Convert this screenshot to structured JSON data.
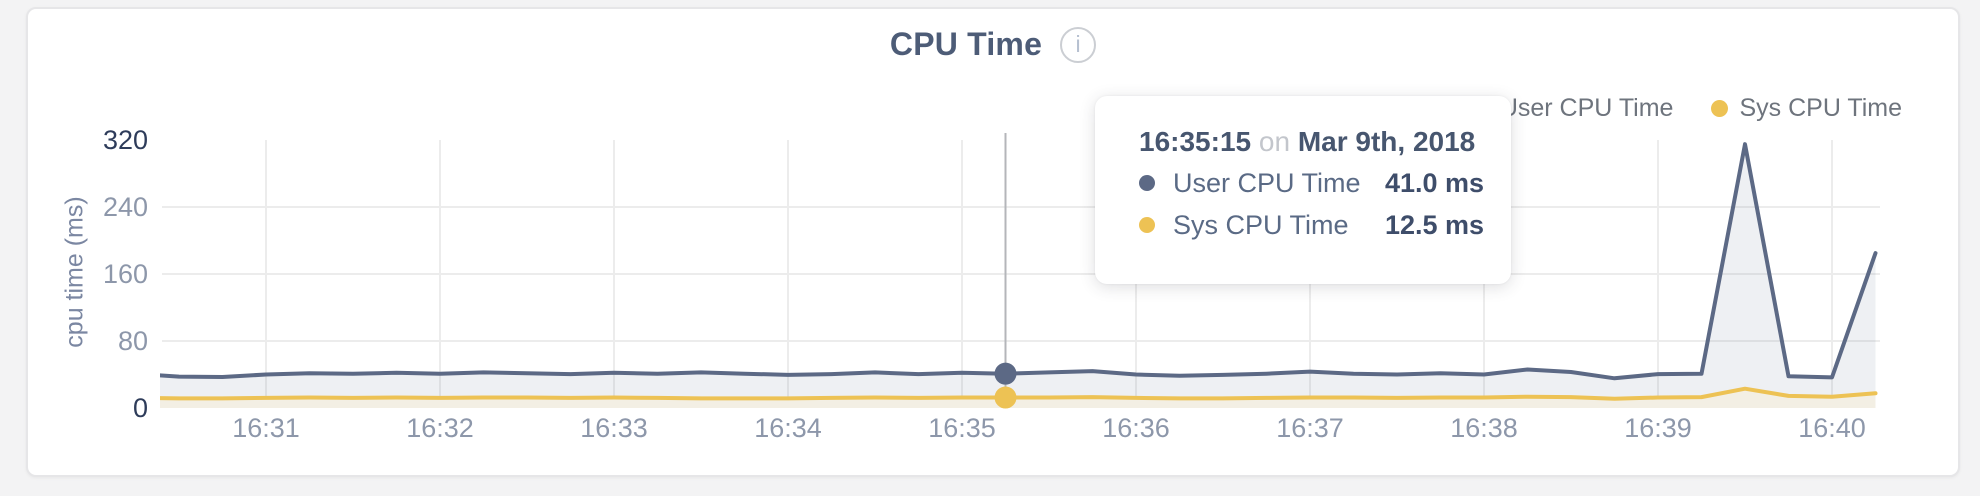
{
  "header": {
    "title": "CPU Time",
    "info_icon_glyph": "i"
  },
  "legend": {
    "items": [
      {
        "label": "User CPU Time",
        "color": "#5c6985"
      },
      {
        "label": "Sys CPU Time",
        "color": "#edc254"
      }
    ]
  },
  "tooltip": {
    "time": "16:35:15",
    "preposition": "on",
    "date": "Mar 9th, 2018",
    "rows": [
      {
        "label": "User CPU Time",
        "value": "41.0 ms",
        "color": "#5c6985"
      },
      {
        "label": "Sys CPU Time",
        "value": "12.5 ms",
        "color": "#edc254"
      }
    ]
  },
  "chart_data": {
    "type": "area",
    "title": "CPU Time",
    "ylabel": "cpu time (ms)",
    "ylim": [
      0,
      320
    ],
    "grid": "on",
    "legend_position": "top-right",
    "x_unit": "seconds after 16:30:00 on Mar 9th, 2018",
    "y_ticks": [
      {
        "v": 0,
        "label": "0",
        "emphasized": true
      },
      {
        "v": 80,
        "label": "80",
        "emphasized": false
      },
      {
        "v": 160,
        "label": "160",
        "emphasized": false
      },
      {
        "v": 240,
        "label": "240",
        "emphasized": false
      },
      {
        "v": 320,
        "label": "320",
        "emphasized": true
      }
    ],
    "x_ticks": [
      {
        "t": 60,
        "label": "16:31"
      },
      {
        "t": 120,
        "label": "16:32"
      },
      {
        "t": 180,
        "label": "16:33"
      },
      {
        "t": 240,
        "label": "16:34"
      },
      {
        "t": 300,
        "label": "16:35"
      },
      {
        "t": 360,
        "label": "16:36"
      },
      {
        "t": 420,
        "label": "16:37"
      },
      {
        "t": 480,
        "label": "16:38"
      },
      {
        "t": 540,
        "label": "16:39"
      },
      {
        "t": 600,
        "label": "16:40"
      }
    ],
    "series": [
      {
        "name": "User CPU Time",
        "color": "#5c6985",
        "fill": "rgba(92,105,134,0.10)",
        "points": [
          [
            15,
            41
          ],
          [
            30,
            37.5
          ],
          [
            45,
            37
          ],
          [
            60,
            40
          ],
          [
            75,
            41.5
          ],
          [
            90,
            41
          ],
          [
            105,
            42
          ],
          [
            120,
            41
          ],
          [
            135,
            42.5
          ],
          [
            150,
            41.5
          ],
          [
            165,
            40.5
          ],
          [
            180,
            42
          ],
          [
            195,
            41
          ],
          [
            210,
            42.5
          ],
          [
            225,
            41
          ],
          [
            240,
            39.5
          ],
          [
            255,
            40.5
          ],
          [
            270,
            42.5
          ],
          [
            285,
            40.5
          ],
          [
            300,
            42
          ],
          [
            315,
            41
          ],
          [
            330,
            42.5
          ],
          [
            345,
            44
          ],
          [
            360,
            40
          ],
          [
            375,
            38.5
          ],
          [
            390,
            39.5
          ],
          [
            405,
            41
          ],
          [
            420,
            43.5
          ],
          [
            435,
            41
          ],
          [
            450,
            40
          ],
          [
            465,
            41.5
          ],
          [
            480,
            40
          ],
          [
            495,
            46
          ],
          [
            510,
            43
          ],
          [
            525,
            35.5
          ],
          [
            540,
            40.5
          ],
          [
            555,
            41
          ],
          [
            570,
            315
          ],
          [
            585,
            38
          ],
          [
            600,
            36.5
          ],
          [
            615,
            185
          ]
        ]
      },
      {
        "name": "Sys CPU Time",
        "color": "#edc254",
        "fill": "#f3efe4",
        "points": [
          [
            15,
            12
          ],
          [
            30,
            11.5
          ],
          [
            45,
            11.5
          ],
          [
            60,
            12
          ],
          [
            75,
            12.5
          ],
          [
            90,
            12
          ],
          [
            105,
            12.5
          ],
          [
            120,
            12
          ],
          [
            135,
            12.5
          ],
          [
            150,
            12.5
          ],
          [
            165,
            12
          ],
          [
            180,
            12.5
          ],
          [
            195,
            12
          ],
          [
            210,
            11.5
          ],
          [
            225,
            11.5
          ],
          [
            240,
            11.5
          ],
          [
            255,
            12
          ],
          [
            270,
            12.5
          ],
          [
            285,
            12
          ],
          [
            300,
            12.5
          ],
          [
            315,
            12.5
          ],
          [
            330,
            12.5
          ],
          [
            345,
            13
          ],
          [
            360,
            12
          ],
          [
            375,
            11.5
          ],
          [
            390,
            11.5
          ],
          [
            405,
            12
          ],
          [
            420,
            12.5
          ],
          [
            435,
            12.5
          ],
          [
            450,
            12
          ],
          [
            465,
            12.5
          ],
          [
            480,
            12.5
          ],
          [
            495,
            13.5
          ],
          [
            510,
            13
          ],
          [
            525,
            11
          ],
          [
            540,
            12.5
          ],
          [
            555,
            13
          ],
          [
            570,
            23
          ],
          [
            585,
            14.5
          ],
          [
            600,
            13.5
          ],
          [
            615,
            17.5
          ]
        ]
      }
    ],
    "highlight": {
      "t": 315,
      "time": "16:35:15",
      "date": "Mar 9th, 2018",
      "user_cpu_ms": 41.0,
      "sys_cpu_ms": 12.5
    },
    "colors": {
      "grid": "#ececec",
      "crosshair": "#b4b6ba",
      "tick_label": "#8d97aa",
      "tick_label_emphasized": "#2e3c5a"
    }
  }
}
